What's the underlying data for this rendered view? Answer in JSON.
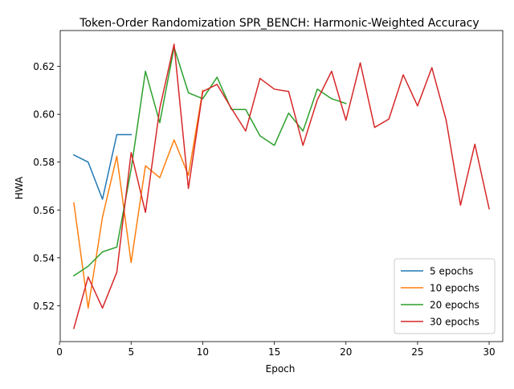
{
  "chart_data": {
    "type": "line",
    "title": "Token-Order Randomization SPR_BENCH: Harmonic-Weighted Accuracy",
    "xlabel": "Epoch",
    "ylabel": "HWA",
    "xlim": [
      0.05,
      30.95
    ],
    "ylim": [
      0.505,
      0.635
    ],
    "xticks": [
      0,
      5,
      10,
      15,
      20,
      25,
      30
    ],
    "yticks": [
      0.52,
      0.54,
      0.56,
      0.58,
      0.6,
      0.62
    ],
    "ytick_labels": [
      "0.52",
      "0.54",
      "0.56",
      "0.58",
      "0.60",
      "0.62"
    ],
    "grid": false,
    "legend_position": "lower-right",
    "series": [
      {
        "name": "5 epochs",
        "color": "#1f77b4",
        "x": [
          1,
          2,
          3,
          4,
          5
        ],
        "y": [
          0.583,
          0.58,
          0.5645,
          0.5915,
          0.5915
        ]
      },
      {
        "name": "10 epochs",
        "color": "#ff7f0e",
        "x": [
          1,
          2,
          3,
          4,
          5,
          6,
          7,
          8,
          9,
          10
        ],
        "y": [
          0.563,
          0.519,
          0.557,
          0.5825,
          0.538,
          0.5785,
          0.5735,
          0.5893,
          0.5745,
          0.61
        ]
      },
      {
        "name": "20 epochs",
        "color": "#2ca02c",
        "x": [
          1,
          2,
          3,
          4,
          5,
          6,
          7,
          8,
          9,
          10,
          11,
          12,
          13,
          14,
          15,
          16,
          17,
          18,
          19,
          20
        ],
        "y": [
          0.5325,
          0.5365,
          0.5425,
          0.5445,
          0.577,
          0.618,
          0.5965,
          0.628,
          0.609,
          0.6065,
          0.6155,
          0.602,
          0.602,
          0.591,
          0.587,
          0.6005,
          0.593,
          0.6105,
          0.6065,
          0.6045
        ]
      },
      {
        "name": "30 epochs",
        "color": "#d62728",
        "x": [
          1,
          2,
          3,
          4,
          5,
          6,
          7,
          8,
          9,
          10,
          11,
          12,
          13,
          14,
          15,
          16,
          17,
          18,
          19,
          20,
          21,
          22,
          23,
          24,
          25,
          26,
          27,
          28,
          29,
          30
        ],
        "y": [
          0.5105,
          0.532,
          0.519,
          0.534,
          0.584,
          0.559,
          0.6025,
          0.6293,
          0.569,
          0.6095,
          0.6125,
          0.6025,
          0.593,
          0.615,
          0.6105,
          0.6095,
          0.587,
          0.606,
          0.618,
          0.5975,
          0.6215,
          0.5945,
          0.598,
          0.6165,
          0.6035,
          0.6195,
          0.5975,
          0.562,
          0.5875,
          0.5605
        ]
      }
    ]
  }
}
